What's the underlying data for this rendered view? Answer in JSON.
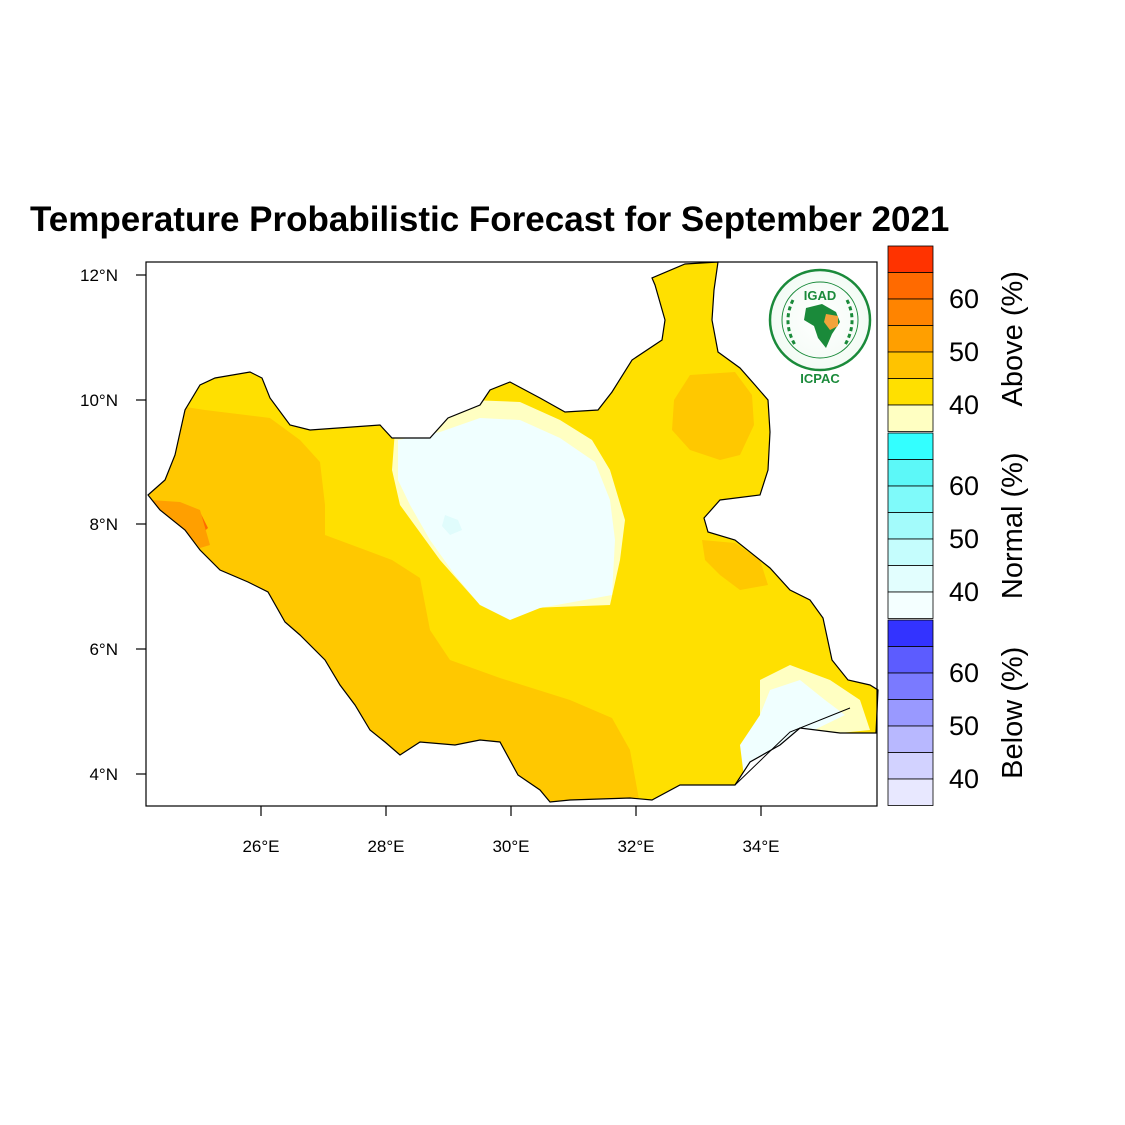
{
  "title": "Temperature Probabilistic Forecast for September 2021",
  "map": {
    "region": "South Sudan",
    "lon_range": [
      24.2,
      35.9
    ],
    "lat_range": [
      3.5,
      12.2
    ],
    "lat_ticks": [
      {
        "value": 4,
        "label": "4°N"
      },
      {
        "value": 6,
        "label": "6°N"
      },
      {
        "value": 8,
        "label": "8°N"
      },
      {
        "value": 10,
        "label": "10°N"
      },
      {
        "value": 12,
        "label": "12°N"
      }
    ],
    "lon_ticks": [
      {
        "value": 26,
        "label": "26°E"
      },
      {
        "value": 28,
        "label": "28°E"
      },
      {
        "value": 30,
        "label": "30°E"
      },
      {
        "value": 32,
        "label": "32°E"
      },
      {
        "value": 34,
        "label": "34°E"
      }
    ]
  },
  "logo": {
    "name": "IGAD",
    "sub": "ICPAC"
  },
  "legend": {
    "groups": [
      {
        "name": "Above (%)",
        "labels": [
          "60",
          "50",
          "40"
        ],
        "colors": [
          "#ff3300",
          "#ff6a00",
          "#ff8400",
          "#ff9f00",
          "#ffc300",
          "#ffe000",
          "#ffffc2"
        ]
      },
      {
        "name": "Normal (%)",
        "labels": [
          "60",
          "50",
          "40"
        ],
        "colors": [
          "#33ffff",
          "#5cf8f8",
          "#7ffafa",
          "#a3fbfb",
          "#c5fdfd",
          "#e2fefe",
          "#f4ffff"
        ]
      },
      {
        "name": "Below (%)",
        "labels": [
          "60",
          "50",
          "40"
        ],
        "colors": [
          "#3333ff",
          "#5c5cff",
          "#7a7aff",
          "#9999ff",
          "#b8b8ff",
          "#d2d2ff",
          "#e8e8ff"
        ]
      }
    ]
  },
  "colors": {
    "above_40_45": "#ffe000",
    "above_45_50": "#ffc800",
    "above_60": "#ff6a00",
    "above_35_40": "#ffffc2",
    "normal_35_40": "#f0ffff",
    "normal_40_45": "#e0fcfc"
  }
}
